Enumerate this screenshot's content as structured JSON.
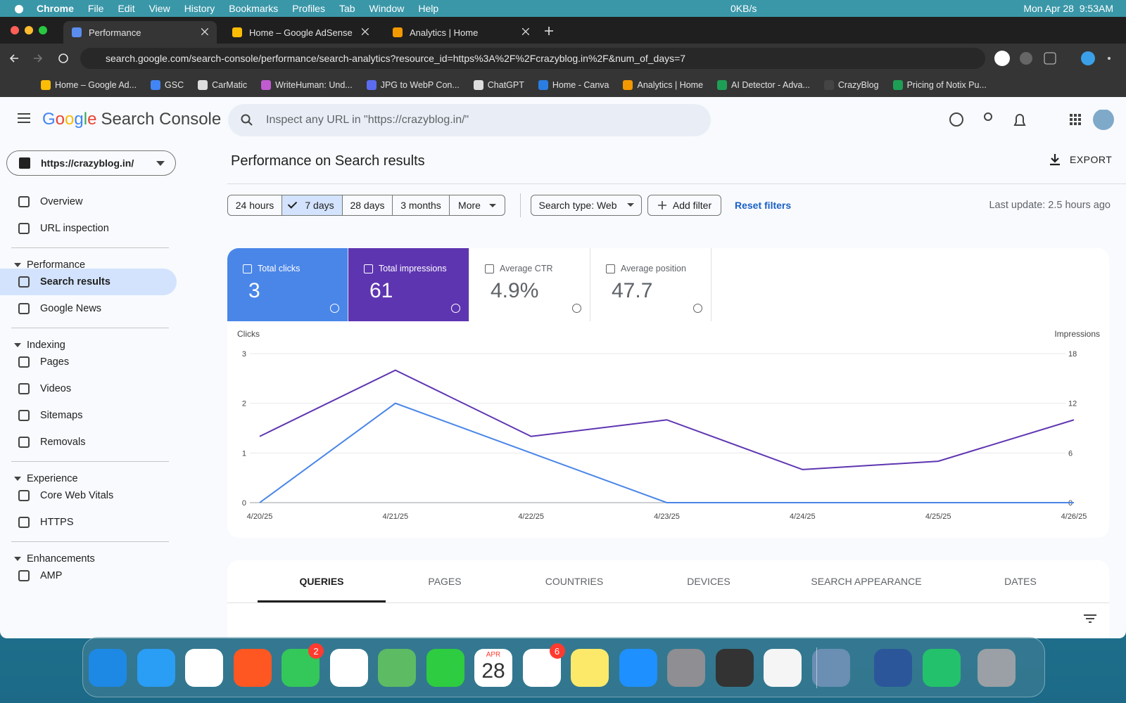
{
  "menubar": {
    "app": "Chrome",
    "menus": [
      "File",
      "Edit",
      "View",
      "History",
      "Bookmarks",
      "Profiles",
      "Tab",
      "Window",
      "Help"
    ],
    "network": "0KB/s",
    "clock": "Mon Apr 28  9:53AM"
  },
  "browser": {
    "tabs": [
      "Performance",
      "Home – Google AdSense",
      "Analytics | Home"
    ],
    "url": "search.google.com/search-console/performance/search-analytics?resource_id=https%3A%2F%2Fcrazyblog.in%2F&num_of_days=7",
    "bookmarks": [
      "Home – Google Ad...",
      "GSC",
      "CarMatic",
      "WriteHuman: Und...",
      "JPG to WebP Con...",
      "ChatGPT",
      "Home - Canva",
      "Analytics | Home",
      "AI Detector - Adva...",
      "CrazyBlog",
      "Pricing of Notix Pu..."
    ]
  },
  "header": {
    "logo": "Google",
    "product": "Search Console",
    "search_placeholder": "Inspect any URL in \"https://crazyblog.in/\""
  },
  "property": "https://crazyblog.in/",
  "sidebar": [
    {
      "items": [
        "Overview",
        "URL inspection"
      ]
    },
    {
      "title": "Performance",
      "items": [
        "Search results",
        "Google News"
      ]
    },
    {
      "title": "Indexing",
      "items": [
        "Pages",
        "Videos",
        "Sitemaps",
        "Removals"
      ]
    },
    {
      "title": "Experience",
      "items": [
        "Core Web Vitals",
        "HTTPS"
      ]
    },
    {
      "title": "Enhancements",
      "items": [
        "AMP"
      ]
    }
  ],
  "page": {
    "title": "Performance on Search results",
    "export": "EXPORT"
  },
  "filters": {
    "ranges": [
      "24 hours",
      "7 days",
      "28 days",
      "3 months",
      "More"
    ],
    "search_type": "Search type: Web",
    "add_filter": "Add filter",
    "reset": "Reset filters",
    "last_update": "Last update: 2.5 hours ago"
  },
  "metrics": [
    {
      "label": "Total clicks",
      "value": "3",
      "checked": true
    },
    {
      "label": "Total impressions",
      "value": "61",
      "checked": true
    },
    {
      "label": "Average CTR",
      "value": "4.9%",
      "checked": false
    },
    {
      "label": "Average position",
      "value": "47.7",
      "checked": false
    }
  ],
  "chart_data": {
    "type": "line",
    "categories": [
      "4/20/25",
      "4/21/25",
      "4/22/25",
      "4/23/25",
      "4/24/25",
      "4/25/25",
      "4/26/25"
    ],
    "ylim": [
      0,
      3
    ],
    "yticks": [
      0,
      1,
      2,
      3
    ],
    "y2lim": [
      0,
      18
    ],
    "y2ticks": [
      0,
      6,
      12,
      18
    ],
    "grid": true,
    "series": [
      {
        "name": "Clicks",
        "color": "#4a86e8",
        "values": [
          0,
          2,
          1,
          0,
          0,
          0,
          0
        ]
      },
      {
        "name": "Impressions",
        "color": "#5e35b1",
        "axis": "y2",
        "values": [
          8,
          16,
          8,
          10,
          4,
          5,
          10
        ]
      }
    ]
  },
  "report_tabs": [
    "QUERIES",
    "PAGES",
    "COUNTRIES",
    "DEVICES",
    "SEARCH APPEARANCE",
    "DATES"
  ],
  "dock": {
    "messages_badge": "2",
    "calendar_month": "APR",
    "calendar_day": "28",
    "reminders_badge": "6"
  }
}
